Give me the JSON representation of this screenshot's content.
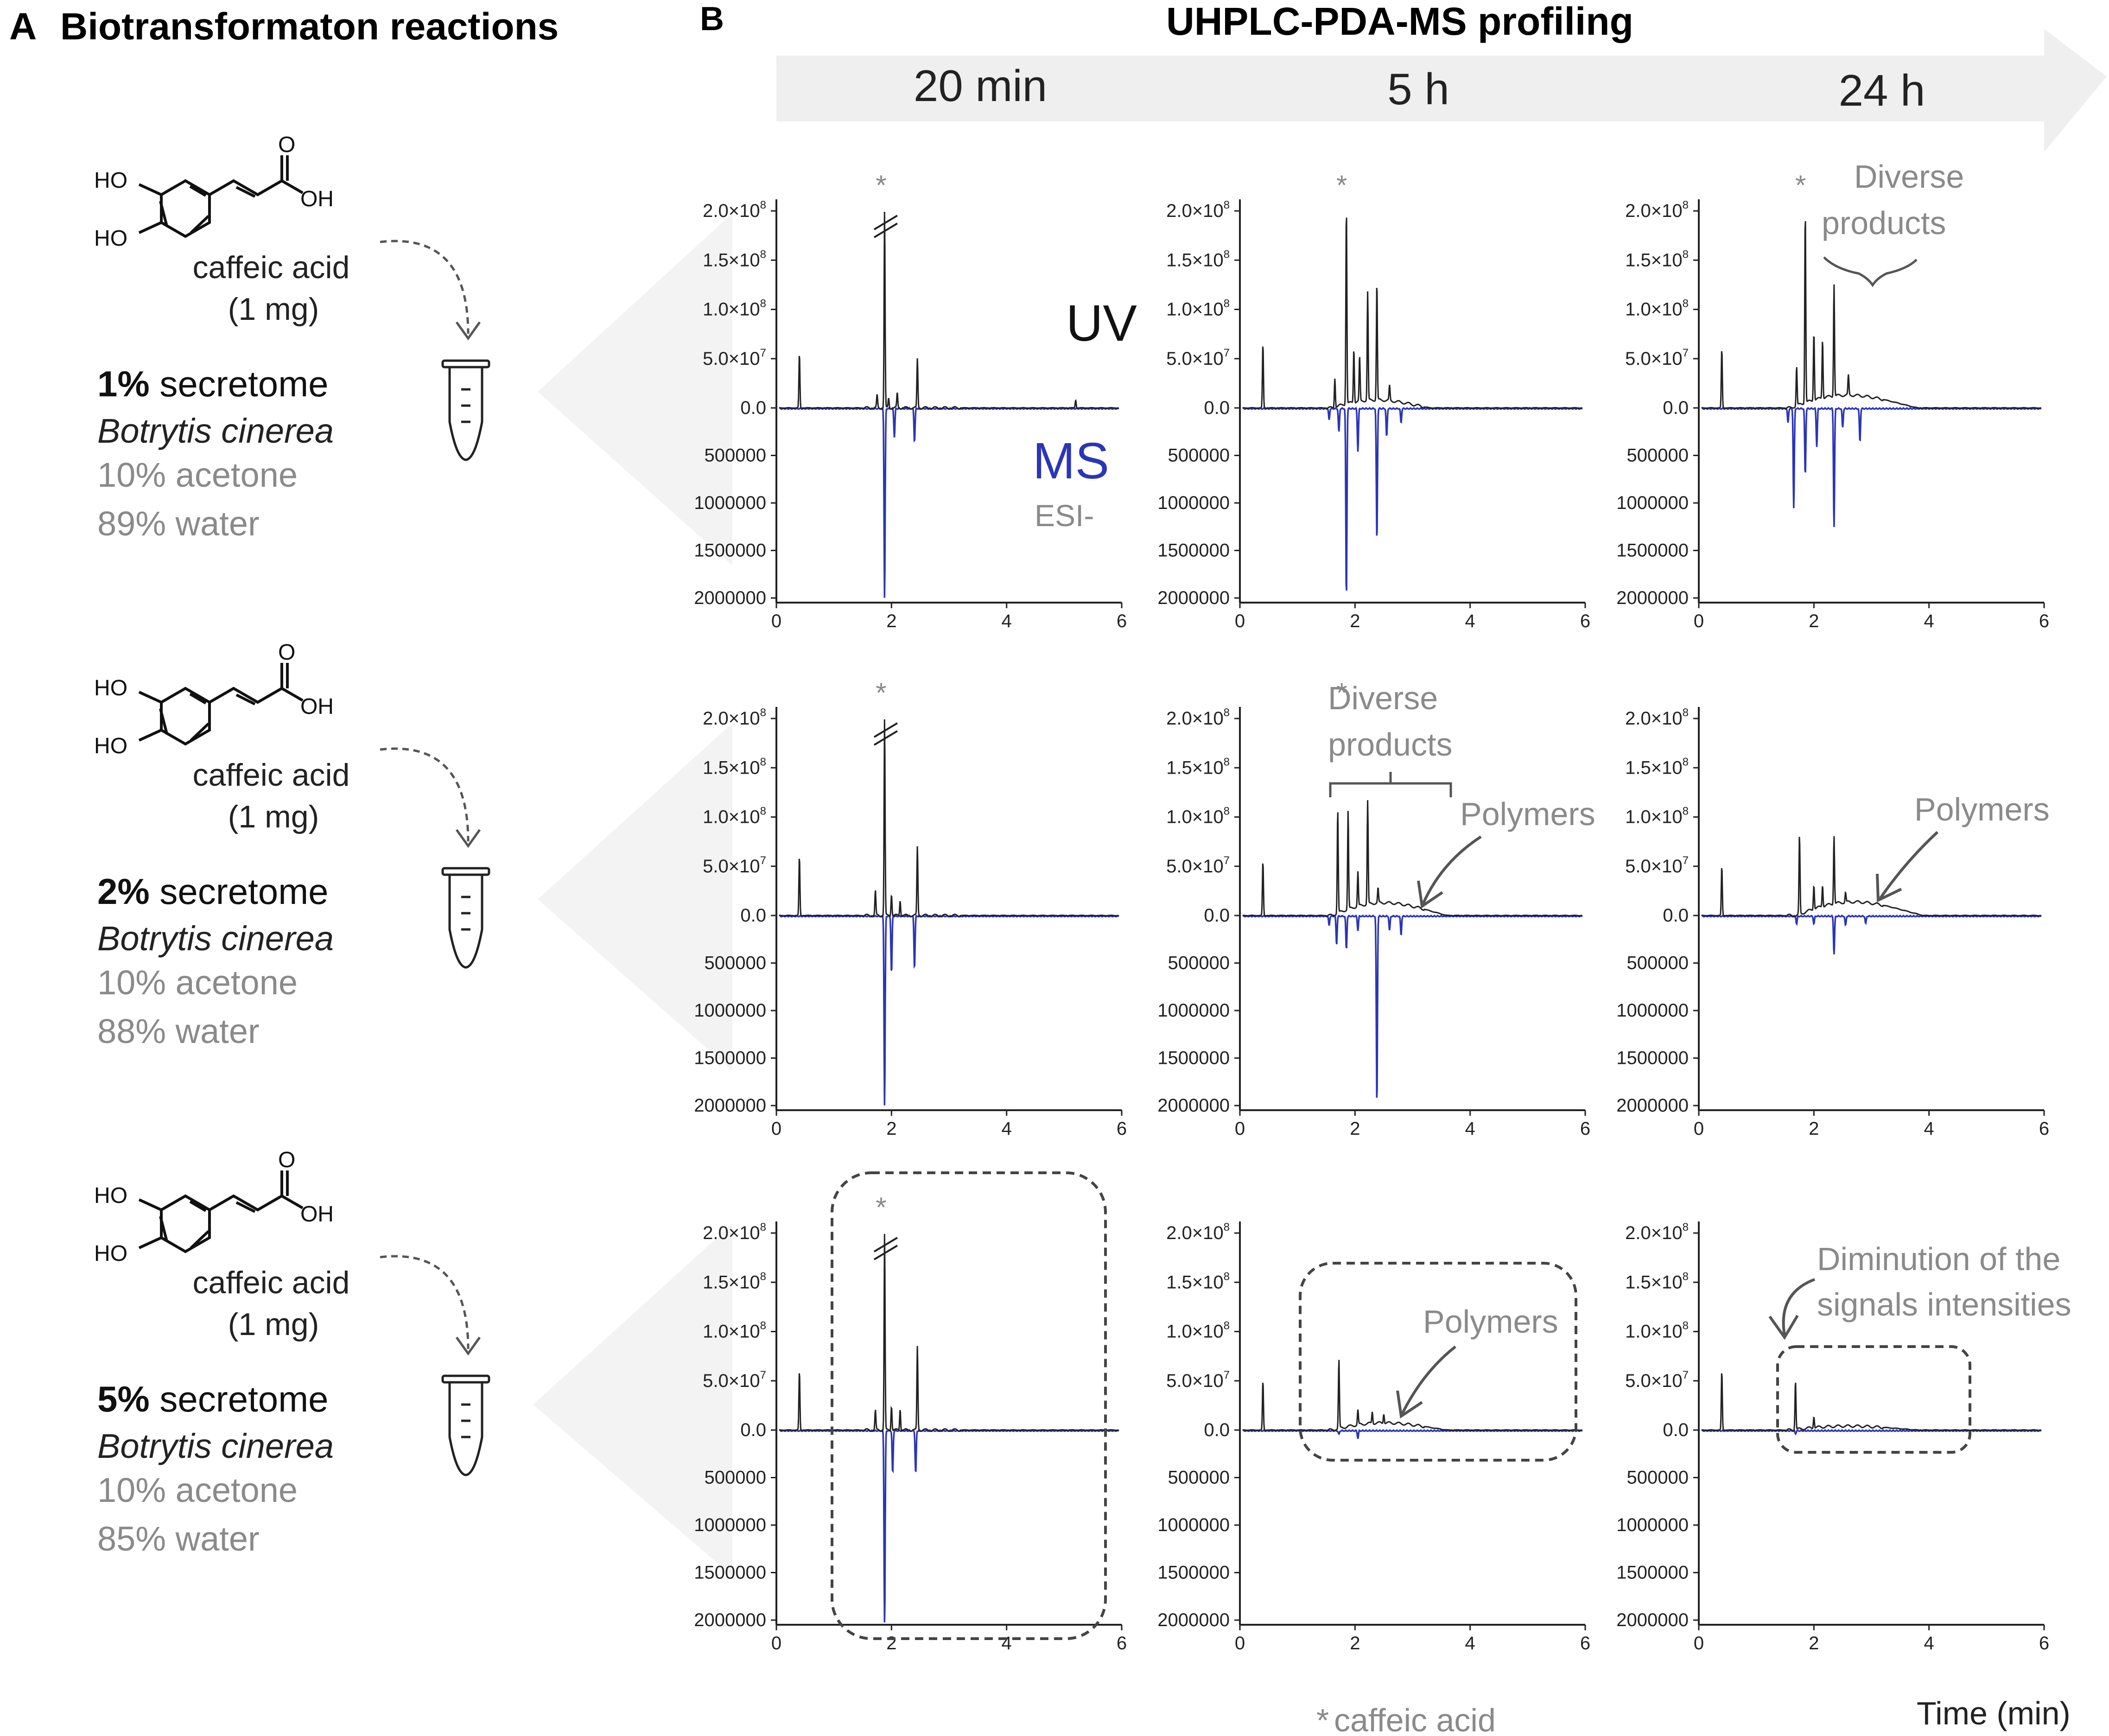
{
  "panel_a": {
    "letter": "A",
    "title": "Biotransformaton reactions",
    "compound": {
      "ho1": "HO",
      "ho2": "HO",
      "o": "O",
      "oh": "OH",
      "name": "caffeic acid",
      "amount": "(1 mg)"
    },
    "reactions": [
      {
        "pct": "1%",
        "secretome": " secretome",
        "organism": "Botrytis cinerea",
        "acetone": "10% acetone",
        "water": "89% water"
      },
      {
        "pct": "2%",
        "secretome": " secretome",
        "organism": "Botrytis cinerea",
        "acetone": "10% acetone",
        "water": "88% water"
      },
      {
        "pct": "5%",
        "secretome": " secretome",
        "organism": "Botrytis cinerea",
        "acetone": "10% acetone",
        "water": "85% water"
      }
    ]
  },
  "panel_b": {
    "letter": "B",
    "title": "UHPLC-PDA-MS profiling",
    "timepoints": [
      "20 min",
      "5 h",
      "24 h"
    ]
  },
  "annotations": {
    "uv": "UV",
    "ms": "MS",
    "esi": "ESI-",
    "star": "*",
    "diverse1": "Diverse",
    "diverse2": "products",
    "polymers": "Polymers",
    "dim1": "Diminution of the",
    "dim2": "signals intensities",
    "footnote_star": "*",
    "footnote_text": "caffeic acid",
    "time_label": "Time (min)"
  },
  "axes": {
    "x_ticks": [
      "0",
      "2",
      "4",
      "6"
    ],
    "uv_ticks": [
      {
        "value": 0,
        "label": "0.0"
      },
      {
        "value": 50000000.0,
        "label": "5.0×10",
        "exp": "7"
      },
      {
        "value": 100000000.0,
        "label": "1.0×10",
        "exp": "8"
      },
      {
        "value": 150000000.0,
        "label": "1.5×10",
        "exp": "8"
      },
      {
        "value": 200000000.0,
        "label": "2.0×10",
        "exp": "8"
      }
    ],
    "ms_ticks": [
      {
        "value": 500000,
        "label": "500000"
      },
      {
        "value": 1000000,
        "label": "1000000"
      },
      {
        "value": 1500000,
        "label": "1500000"
      },
      {
        "value": 2000000,
        "label": "2000000"
      }
    ]
  },
  "colors": {
    "uv": "#222222",
    "ms": "#2b35b8",
    "annotation": "#8a8a8a",
    "arrow_band": "#efefef",
    "funnel": "#f3f3f3"
  },
  "chart_data": [
    {
      "type": "line",
      "row": 1,
      "timepoint": "20 min",
      "xlim": [
        0,
        6
      ],
      "uv_ylim": [
        0,
        200000000.0
      ],
      "ms_ylim": [
        0,
        2000000
      ],
      "caffeic_peak_x": 1.9,
      "uv_peaks": [
        [
          0.4,
          55000000.0
        ],
        [
          1.75,
          13000000.0
        ],
        [
          1.88,
          200000000.0
        ],
        [
          1.95,
          10000000.0
        ],
        [
          2.1,
          15000000.0
        ],
        [
          2.45,
          50000000.0
        ],
        [
          5.2,
          8000000.0
        ]
      ],
      "ms_peaks": [
        [
          1.88,
          2000000
        ],
        [
          2.05,
          300000
        ],
        [
          2.4,
          350000
        ]
      ]
    },
    {
      "type": "line",
      "row": 1,
      "timepoint": "5 h",
      "xlim": [
        0,
        6
      ],
      "uv_ylim": [
        0,
        200000000.0
      ],
      "ms_ylim": [
        0,
        2000000
      ],
      "caffeic_peak_x": 1.85,
      "uv_peaks": [
        [
          0.4,
          65000000.0
        ],
        [
          1.65,
          30000000.0
        ],
        [
          1.85,
          200000000.0
        ],
        [
          1.98,
          55000000.0
        ],
        [
          2.08,
          45000000.0
        ],
        [
          2.22,
          110000000.0
        ],
        [
          2.38,
          120000000.0
        ],
        [
          2.6,
          15000000.0
        ]
      ],
      "ms_peaks": [
        [
          1.55,
          120000
        ],
        [
          1.72,
          250000
        ],
        [
          1.85,
          2000000
        ],
        [
          2.05,
          450000
        ],
        [
          2.38,
          1400000
        ],
        [
          2.55,
          300000
        ],
        [
          2.8,
          150000
        ]
      ],
      "uv_hump": {
        "start": 1.6,
        "end": 3.3,
        "height": 10000000.0
      }
    },
    {
      "type": "line",
      "row": 1,
      "timepoint": "24 h",
      "xlim": [
        0,
        6
      ],
      "uv_ylim": [
        0,
        200000000.0
      ],
      "ms_ylim": [
        0,
        2000000
      ],
      "caffeic_peak_x": 1.85,
      "uv_peaks": [
        [
          0.4,
          60000000.0
        ],
        [
          1.7,
          40000000.0
        ],
        [
          1.85,
          195000000.0
        ],
        [
          2.0,
          70000000.0
        ],
        [
          2.15,
          60000000.0
        ],
        [
          2.35,
          115000000.0
        ],
        [
          2.6,
          20000000.0
        ]
      ],
      "ms_peaks": [
        [
          1.55,
          150000
        ],
        [
          1.65,
          1050000
        ],
        [
          1.85,
          700000
        ],
        [
          2.05,
          400000
        ],
        [
          2.35,
          1250000
        ],
        [
          2.5,
          200000
        ],
        [
          2.8,
          350000
        ]
      ],
      "uv_hump": {
        "start": 1.6,
        "end": 3.8,
        "height": 16000000.0
      }
    },
    {
      "type": "line",
      "row": 2,
      "timepoint": "20 min",
      "xlim": [
        0,
        6
      ],
      "uv_ylim": [
        0,
        200000000.0
      ],
      "ms_ylim": [
        0,
        2000000
      ],
      "caffeic_peak_x": 1.9,
      "uv_peaks": [
        [
          0.4,
          60000000.0
        ],
        [
          1.72,
          25000000.0
        ],
        [
          1.88,
          200000000.0
        ],
        [
          2.0,
          22000000.0
        ],
        [
          2.15,
          16000000.0
        ],
        [
          2.45,
          70000000.0
        ]
      ],
      "ms_peaks": [
        [
          1.88,
          2000000
        ],
        [
          2.0,
          600000
        ],
        [
          2.4,
          550000
        ]
      ]
    },
    {
      "type": "line",
      "row": 2,
      "timepoint": "5 h",
      "xlim": [
        0,
        6
      ],
      "uv_ylim": [
        0,
        200000000.0
      ],
      "ms_ylim": [
        0,
        2000000
      ],
      "caffeic_peak_x": 1.85,
      "uv_peaks": [
        [
          0.4,
          55000000.0
        ],
        [
          1.7,
          105000000.0
        ],
        [
          1.88,
          100000000.0
        ],
        [
          2.05,
          35000000.0
        ],
        [
          2.22,
          105000000.0
        ],
        [
          2.4,
          15000000.0
        ]
      ],
      "ms_peaks": [
        [
          1.55,
          100000
        ],
        [
          1.68,
          300000
        ],
        [
          1.85,
          350000
        ],
        [
          2.05,
          150000
        ],
        [
          2.38,
          2000000
        ],
        [
          2.6,
          150000
        ],
        [
          2.8,
          200000
        ]
      ],
      "uv_hump": {
        "start": 1.6,
        "end": 3.6,
        "height": 16000000.0
      }
    },
    {
      "type": "line",
      "row": 2,
      "timepoint": "24 h",
      "xlim": [
        0,
        6
      ],
      "uv_ylim": [
        0,
        200000000.0
      ],
      "ms_ylim": [
        0,
        2000000
      ],
      "uv_peaks": [
        [
          0.4,
          50000000.0
        ],
        [
          1.75,
          80000000.0
        ],
        [
          2.0,
          25000000.0
        ],
        [
          2.15,
          22000000.0
        ],
        [
          2.35,
          70000000.0
        ],
        [
          2.55,
          10000000.0
        ]
      ],
      "ms_peaks": [
        [
          1.7,
          80000
        ],
        [
          2.0,
          80000
        ],
        [
          2.35,
          400000
        ],
        [
          2.55,
          100000
        ],
        [
          2.9,
          80000
        ]
      ],
      "uv_hump": {
        "start": 1.7,
        "end": 3.9,
        "height": 17000000.0
      }
    },
    {
      "type": "line",
      "row": 3,
      "timepoint": "20 min",
      "xlim": [
        0,
        6
      ],
      "uv_ylim": [
        0,
        200000000.0
      ],
      "ms_ylim": [
        0,
        2000000
      ],
      "caffeic_peak_x": 1.9,
      "uv_peaks": [
        [
          0.4,
          60000000.0
        ],
        [
          1.72,
          20000000.0
        ],
        [
          1.88,
          200000000.0
        ],
        [
          2.0,
          25000000.0
        ],
        [
          2.15,
          22000000.0
        ],
        [
          2.45,
          85000000.0
        ]
      ],
      "ms_peaks": [
        [
          1.88,
          2150000
        ],
        [
          2.02,
          450000
        ],
        [
          2.42,
          450000
        ]
      ]
    },
    {
      "type": "line",
      "row": 3,
      "timepoint": "5 h",
      "xlim": [
        0,
        6
      ],
      "uv_ylim": [
        0,
        200000000.0
      ],
      "ms_ylim": [
        0,
        2000000
      ],
      "uv_peaks": [
        [
          0.4,
          50000000.0
        ],
        [
          1.72,
          70000000.0
        ],
        [
          2.05,
          15000000.0
        ],
        [
          2.3,
          12000000.0
        ],
        [
          2.5,
          10000000.0
        ]
      ],
      "ms_peaks": [
        [
          1.72,
          40000
        ],
        [
          2.05,
          80000
        ]
      ],
      "uv_hump": {
        "start": 1.6,
        "end": 3.6,
        "height": 9000000.0
      }
    },
    {
      "type": "line",
      "row": 3,
      "timepoint": "24 h",
      "xlim": [
        0,
        6
      ],
      "uv_ylim": [
        0,
        200000000.0
      ],
      "ms_ylim": [
        0,
        2000000
      ],
      "uv_peaks": [
        [
          0.4,
          60000000.0
        ],
        [
          1.68,
          50000000.0
        ],
        [
          2.0,
          12000000.0
        ]
      ],
      "ms_peaks": [
        [
          1.68,
          30000
        ]
      ],
      "uv_hump": {
        "start": 1.6,
        "end": 3.8,
        "height": 5000000.0
      }
    }
  ]
}
